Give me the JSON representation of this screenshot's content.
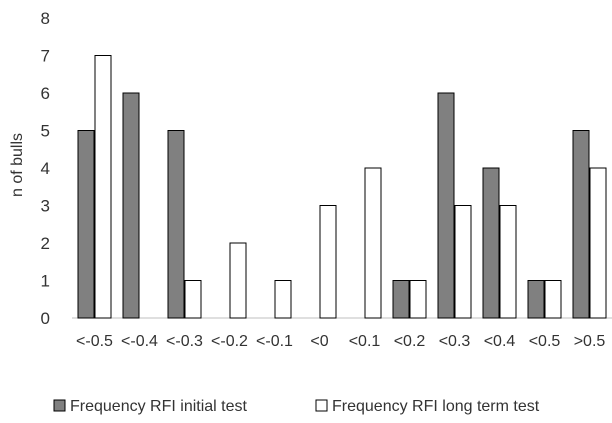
{
  "chart_data": {
    "type": "bar",
    "title": "",
    "xlabel": "",
    "ylabel": "n of bulls",
    "categories": [
      "<-0.5",
      "<-0.4",
      "<-0.3",
      "<-0.2",
      "<-0.1",
      "<0",
      "<0.1",
      "<0.2",
      "<0.3",
      "<0.4",
      "<0.5",
      ">0.5"
    ],
    "series": [
      {
        "name": "Frequency RFI initial test",
        "values": [
          5,
          6,
          5,
          0,
          0,
          0,
          0,
          1,
          6,
          4,
          1,
          5
        ],
        "color": "#808080"
      },
      {
        "name": "Frequency RFI long term test",
        "values": [
          7,
          0,
          1,
          2,
          1,
          3,
          4,
          1,
          3,
          3,
          1,
          4
        ],
        "color": "#ffffff"
      }
    ],
    "ylim": [
      0,
      8
    ],
    "yticks": [
      0,
      1,
      2,
      3,
      4,
      5,
      6,
      7,
      8
    ],
    "grid": false,
    "legend_position": "bottom"
  }
}
